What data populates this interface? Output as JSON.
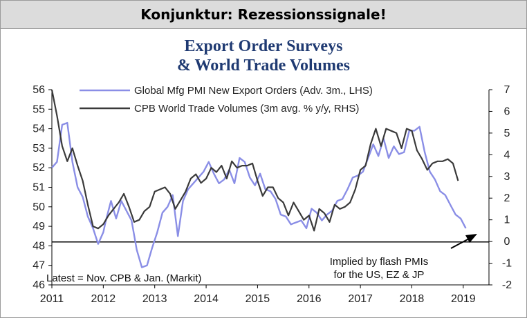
{
  "banner": {
    "title": "Konjunktur: Rezessionssignale!"
  },
  "chart_data": {
    "type": "line",
    "title": [
      "Export Order Surveys",
      "& World Trade Volumes"
    ],
    "x_ticks": [
      "2011",
      "2012",
      "2013",
      "2014",
      "2015",
      "2016",
      "2017",
      "2018",
      "2019"
    ],
    "xlim": [
      2011,
      2019.5
    ],
    "y_left": {
      "ticks": [
        46,
        47,
        48,
        49,
        50,
        51,
        52,
        53,
        54,
        55,
        56
      ],
      "ylim": [
        46,
        56
      ]
    },
    "y_right": {
      "ticks": [
        -2,
        -1,
        0,
        1,
        2,
        3,
        4,
        5,
        6,
        7
      ],
      "ylim": [
        -2,
        7
      ]
    },
    "reference_line": {
      "axis": "left",
      "value": 48.2
    },
    "series": [
      {
        "name": "Global Mfg PMI New Export Orders (Adv. 3m., LHS)",
        "axis": "left",
        "color": "#8a8ee6",
        "x": [
          2011.0,
          2011.1,
          2011.2,
          2011.3,
          2011.4,
          2011.5,
          2011.6,
          2011.7,
          2011.8,
          2011.9,
          2012.0,
          2012.05,
          2012.15,
          2012.25,
          2012.35,
          2012.45,
          2012.55,
          2012.65,
          2012.75,
          2012.85,
          2012.95,
          2013.05,
          2013.15,
          2013.25,
          2013.35,
          2013.45,
          2013.55,
          2013.65,
          2013.75,
          2013.85,
          2013.95,
          2014.05,
          2014.15,
          2014.25,
          2014.35,
          2014.45,
          2014.55,
          2014.65,
          2014.75,
          2014.85,
          2014.95,
          2015.05,
          2015.15,
          2015.25,
          2015.35,
          2015.45,
          2015.55,
          2015.65,
          2015.75,
          2015.85,
          2015.95,
          2016.05,
          2016.15,
          2016.25,
          2016.35,
          2016.45,
          2016.55,
          2016.65,
          2016.75,
          2016.85,
          2016.95,
          2017.05,
          2017.15,
          2017.25,
          2017.35,
          2017.45,
          2017.55,
          2017.65,
          2017.75,
          2017.85,
          2017.95,
          2018.05,
          2018.15,
          2018.25,
          2018.35,
          2018.45,
          2018.55,
          2018.65,
          2018.75,
          2018.85,
          2018.95,
          2019.05
        ],
        "values": [
          52.0,
          52.3,
          54.2,
          54.3,
          52.3,
          51.0,
          50.5,
          49.5,
          48.9,
          48.1,
          48.7,
          49.3,
          50.3,
          49.4,
          50.3,
          49.8,
          49.3,
          47.8,
          46.9,
          47.0,
          47.9,
          48.7,
          49.7,
          50.0,
          50.6,
          48.5,
          50.3,
          50.9,
          51.2,
          51.5,
          51.8,
          52.3,
          51.7,
          51.2,
          51.4,
          51.9,
          51.2,
          52.5,
          52.3,
          51.5,
          51.1,
          51.7,
          50.9,
          50.8,
          50.4,
          49.6,
          49.5,
          49.1,
          49.2,
          49.3,
          48.9,
          49.9,
          49.7,
          49.3,
          49.6,
          49.8,
          50.3,
          50.4,
          50.9,
          51.5,
          51.6,
          51.8,
          52.5,
          53.2,
          52.6,
          53.5,
          52.5,
          53.1,
          52.7,
          52.8,
          53.9,
          53.9,
          54.1,
          52.8,
          51.8,
          51.4,
          50.8,
          50.6,
          50.1,
          49.6,
          49.4,
          48.9
        ]
      },
      {
        "name": "CPB World Trade Volumes (3m avg. % y/y, RHS)",
        "axis": "right",
        "color": "#3a3a3a",
        "x": [
          2011.0,
          2011.1,
          2011.2,
          2011.3,
          2011.4,
          2011.5,
          2011.6,
          2011.7,
          2011.8,
          2011.9,
          2012.0,
          2012.1,
          2012.2,
          2012.3,
          2012.4,
          2012.5,
          2012.6,
          2012.7,
          2012.8,
          2012.9,
          2013.0,
          2013.1,
          2013.2,
          2013.3,
          2013.4,
          2013.5,
          2013.6,
          2013.7,
          2013.8,
          2013.9,
          2014.0,
          2014.1,
          2014.2,
          2014.3,
          2014.4,
          2014.5,
          2014.6,
          2014.7,
          2014.8,
          2014.9,
          2015.0,
          2015.1,
          2015.2,
          2015.3,
          2015.4,
          2015.5,
          2015.6,
          2015.7,
          2015.8,
          2015.9,
          2016.0,
          2016.1,
          2016.2,
          2016.3,
          2016.4,
          2016.5,
          2016.6,
          2016.7,
          2016.8,
          2016.9,
          2017.0,
          2017.1,
          2017.2,
          2017.3,
          2017.4,
          2017.5,
          2017.6,
          2017.7,
          2017.8,
          2017.9,
          2018.0,
          2018.1,
          2018.2,
          2018.3,
          2018.4,
          2018.5,
          2018.6,
          2018.7,
          2018.8,
          2018.9
        ],
        "values": [
          7.0,
          5.8,
          4.4,
          3.7,
          4.3,
          3.5,
          2.8,
          1.7,
          0.7,
          0.6,
          0.8,
          1.2,
          1.5,
          1.8,
          2.2,
          1.6,
          0.9,
          1.0,
          1.4,
          1.6,
          2.3,
          2.4,
          2.5,
          2.2,
          1.5,
          1.9,
          2.3,
          2.9,
          3.1,
          2.7,
          2.9,
          3.4,
          3.2,
          3.5,
          2.9,
          3.7,
          3.4,
          3.5,
          3.5,
          3.6,
          2.8,
          2.1,
          2.5,
          2.5,
          2.0,
          1.8,
          1.2,
          1.8,
          1.4,
          1.0,
          1.2,
          0.5,
          1.5,
          1.3,
          0.9,
          1.7,
          1.5,
          1.6,
          1.8,
          2.4,
          3.3,
          3.5,
          4.5,
          5.2,
          4.4,
          5.2,
          5.1,
          5.0,
          4.3,
          5.2,
          5.1,
          4.2,
          3.8,
          3.3,
          3.6,
          3.7,
          3.7,
          3.8,
          3.6,
          2.8
        ]
      }
    ],
    "legend": [
      "Global Mfg PMI New Export Orders (Adv. 3m., LHS)",
      "CPB World Trade Volumes (3m avg. % y/y, RHS)"
    ],
    "annotations": {
      "latest": "Latest = Nov. CPB & Jan. (Markit)",
      "implied_line1": "Implied by flash PMIs",
      "implied_line2": "for the US, EZ & JP"
    }
  }
}
